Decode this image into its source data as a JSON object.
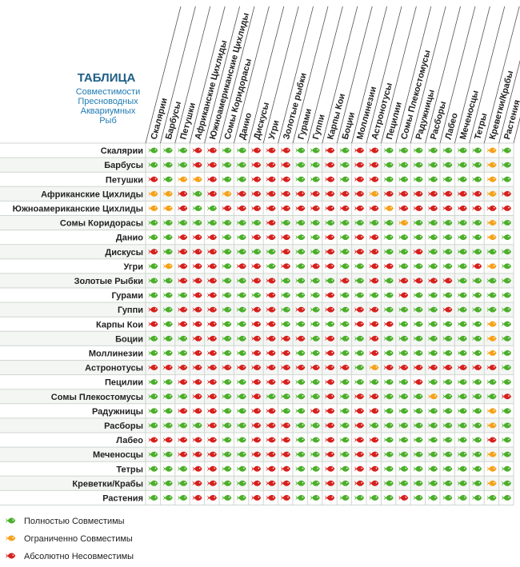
{
  "chart_data": {
    "type": "heatmap",
    "title": "ТАБЛИЦА",
    "subtitle_lines": [
      "Совместимости",
      "Пресноводных",
      "Аквариумных",
      "Рыб"
    ],
    "species": [
      "Скалярии",
      "Барбусы",
      "Петушки",
      "Африканские Цихлиды",
      "Южноамериканские Цихлиды",
      "Сомы Коридорасы",
      "Данио",
      "Дискусы",
      "Угри",
      "Золотые Рыбки",
      "Гурами",
      "Гуппи",
      "Карпы Кои",
      "Боции",
      "Моллинезии",
      "Астронотусы",
      "Пецилии",
      "Сомы Плекостомусы",
      "Радужницы",
      "Расборы",
      "Лабео",
      "Меченосцы",
      "Тетры",
      "Креветки/Крабы",
      "Растения"
    ],
    "columns": [
      "Скалярии",
      "Барбусы",
      "Петушки",
      "Африканские Цихлиды",
      "Южноамериканские Цихлиды",
      "Сомы Коридорасы",
      "Данио",
      "Дискусы",
      "Угри",
      "Золотые рыбки",
      "Гурами",
      "Гуппи",
      "Карпы Кои",
      "Боции",
      "Моллинезии",
      "Астронотусы",
      "Пецилии",
      "Сомы Плекостомусы",
      "Радужницы",
      "Расборы",
      "Лабео",
      "Меченосцы",
      "Тетры",
      "Креветки/Крабы",
      "Растения"
    ],
    "value_legend": {
      "g": "Полностью Совместимы",
      "o": "Ограниченно Совместимы",
      "r": "Абсолютно Несовместимы"
    },
    "colors": {
      "g": "#4caf2a",
      "o": "#f5a21a",
      "r": "#d6211d"
    },
    "matrix": [
      "gggrrggrrrggrgrrgggggggog",
      "gggrrggrrrggrgrrgggggggog",
      "rgoorggrrrggrgrrgggggggog",
      "oorgrorrrrrrrrrorrrrrrror",
      "oorggrrrrrrrrrrrorrrrrrrr",
      "ggggggggrggggggggogggggog",
      "ggrrrggrrrggrgrrgggggggog",
      "rgrrrggggrggrgrrggrgggggg",
      "gorrrgrrgrgrrggrrgggggrog",
      "ggrrrggrrggggrgrgrrrrgggg",
      "gggrrgggrgggrggggrggggggg",
      "rgrrrggrrgrgrgrrggggrgggg",
      "rgrrrggrrgggggrrrggggggog",
      "gggrrggrrrrgrggrgggggggog",
      "gggrrggrrrggrggrgggggggog",
      "rrrrrrrrrrrrrrgorrrrrrrrg",
      "ggrrrggrrrggrgggggrgggggg",
      "gggrrggrggggrgrrgggoggggr",
      "ggrrrggrrggrrgrrgggggggog",
      "ggggrggrrrggrgrggggggggog",
      "rrrrrggrrrggrgrrgggggggrg",
      "ggrrrggrrrggrgrrgggggggog",
      "gggrrggrrrggrgrrgggggggog",
      "gggrrggrrrggrgrrgggggggog",
      "gggrrggrrrggrggggrggggggg"
    ]
  }
}
